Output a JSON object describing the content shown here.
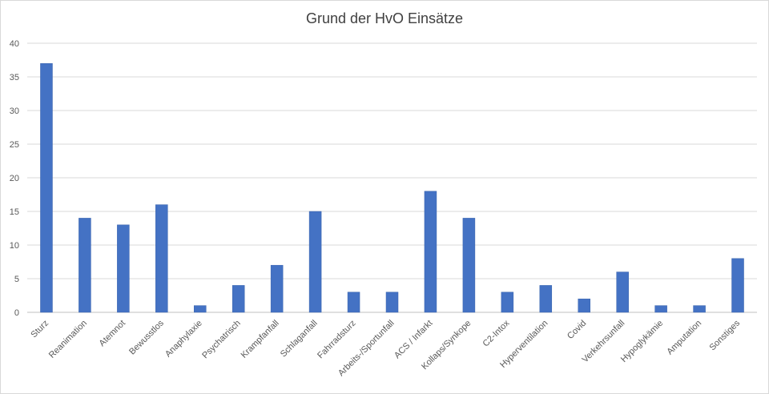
{
  "chart_data": {
    "type": "bar",
    "title": "Grund der HvO Einsätze",
    "xlabel": "",
    "ylabel": "",
    "ylim": [
      0,
      40
    ],
    "yticks": [
      0,
      5,
      10,
      15,
      20,
      25,
      30,
      35,
      40
    ],
    "grid": true,
    "legend": "none",
    "bar_color": "#4472c4",
    "categories": [
      "Sturz",
      "Reanimation",
      "Atemnot",
      "Bewusstlos",
      "Anaphylaxie",
      "Psychatrisch",
      "Krampfanfall",
      "Schlaganfall",
      "Fahrradsturz",
      "Arbeits-/Sportunfall",
      "ACS / Infarkt",
      "Kollaps/Synkope",
      "C2-Intox",
      "Hyperventilation",
      "Covid",
      "Verkehrsunfall",
      "Hypoglykämie",
      "Amputation",
      "Sonstiges"
    ],
    "values": [
      37,
      14,
      13,
      16,
      1,
      4,
      7,
      15,
      3,
      3,
      18,
      14,
      3,
      4,
      2,
      6,
      1,
      1,
      8
    ]
  }
}
